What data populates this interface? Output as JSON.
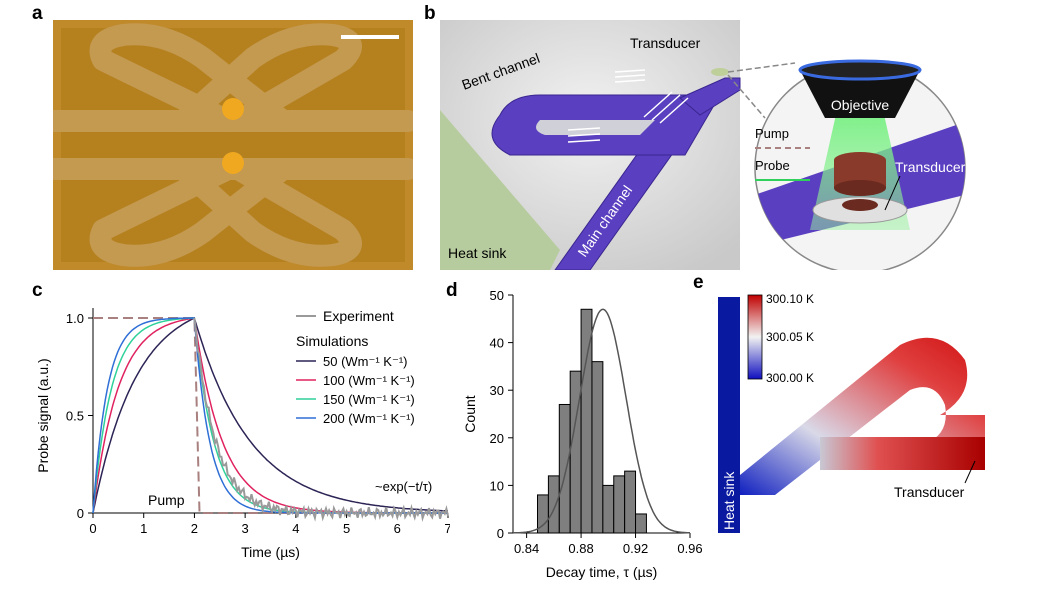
{
  "panels": {
    "a": {
      "letter": "a"
    },
    "b": {
      "letter": "b",
      "labels": {
        "transducer_top": "Transducer",
        "bent_channel": "Bent channel",
        "main_channel": "Main channel",
        "heat_sink": "Heat sink",
        "objective": "Objective",
        "pump": "Pump",
        "probe": "Probe",
        "transducer_inset": "Transducer"
      }
    },
    "c": {
      "letter": "c",
      "ylabel": "Probe signal (a.u.)",
      "xlabel": "Time (µs)",
      "legend_experiment": "Experiment",
      "legend_sim_title": "Simulations",
      "legend_series": [
        "50 (Wm⁻¹ K⁻¹)",
        "100 (Wm⁻¹ K⁻¹)",
        "150 (Wm⁻¹ K⁻¹)",
        "200 (Wm⁻¹ K⁻¹)"
      ],
      "annotation_pump": "Pump",
      "annotation_exp": "~exp(−t/τ)",
      "xticks": [
        "0",
        "1",
        "2",
        "3",
        "4",
        "5",
        "6",
        "7"
      ],
      "yticks": [
        "0",
        "0.5",
        "1.0"
      ]
    },
    "d": {
      "letter": "d",
      "ylabel": "Count",
      "xlabel": "Decay time, τ (µs)",
      "xticks": [
        "0.84",
        "0.88",
        "0.92",
        "0.96"
      ],
      "yticks": [
        "0",
        "10",
        "20",
        "30",
        "40",
        "50"
      ]
    },
    "e": {
      "letter": "e",
      "colorbar_ticks": [
        "300.10 K",
        "300.05 K",
        "300.00 K"
      ],
      "heat_sink": "Heat sink",
      "transducer": "Transducer"
    }
  },
  "colors": {
    "channel": "#5a3fc0",
    "heatsink_green": "#b7cc9e",
    "s50": "#2d2456",
    "s100": "#e0225f",
    "s150": "#2fd19a",
    "s200": "#2f6fd6",
    "pump_dash": "#a8807f",
    "experiment": "#9a9a9a",
    "bars": "#7f7f7f"
  },
  "chart_data": [
    {
      "type": "line",
      "xlabel": "Time (µs)",
      "ylabel": "Probe signal (a.u.)",
      "xlim": [
        0,
        7
      ],
      "ylim": [
        0,
        1.0
      ],
      "pump_on": [
        0,
        2
      ],
      "series": [
        {
          "name": "Experiment",
          "x": [
            2.0,
            2.2,
            2.4,
            2.6,
            2.8,
            3.0,
            3.5,
            4.0,
            5.0,
            6.0,
            7.0
          ],
          "values": [
            1.0,
            0.6,
            0.4,
            0.24,
            0.14,
            0.08,
            0.04,
            0.02,
            0.01,
            0.01,
            0.0
          ]
        },
        {
          "name": "50 (Wm⁻¹ K⁻¹)",
          "tau_rise": 0.85,
          "tau_decay": 1.1
        },
        {
          "name": "100 (Wm⁻¹ K⁻¹)",
          "tau_rise": 0.5,
          "tau_decay": 0.55
        },
        {
          "name": "150 (Wm⁻¹ K⁻¹)",
          "tau_rise": 0.36,
          "tau_decay": 0.38
        },
        {
          "name": "200 (Wm⁻¹ K⁻¹)",
          "tau_rise": 0.28,
          "tau_decay": 0.3
        }
      ],
      "annotations": [
        "Pump",
        "~exp(−t/τ)"
      ]
    },
    {
      "type": "bar",
      "xlabel": "Decay time, τ (µs)",
      "ylabel": "Count",
      "xlim": [
        0.83,
        0.96
      ],
      "ylim": [
        0,
        50
      ],
      "bin_edges": [
        0.848,
        0.856,
        0.864,
        0.872,
        0.88,
        0.888,
        0.896,
        0.904,
        0.912,
        0.92,
        0.928,
        0.936,
        0.944,
        0.952
      ],
      "values": [
        8,
        12,
        27,
        34,
        47,
        36,
        10,
        12,
        13,
        4,
        0,
        0,
        0
      ],
      "fit": {
        "type": "gaussian",
        "mean": 0.896,
        "sd": 0.017,
        "peak": 47
      }
    }
  ]
}
